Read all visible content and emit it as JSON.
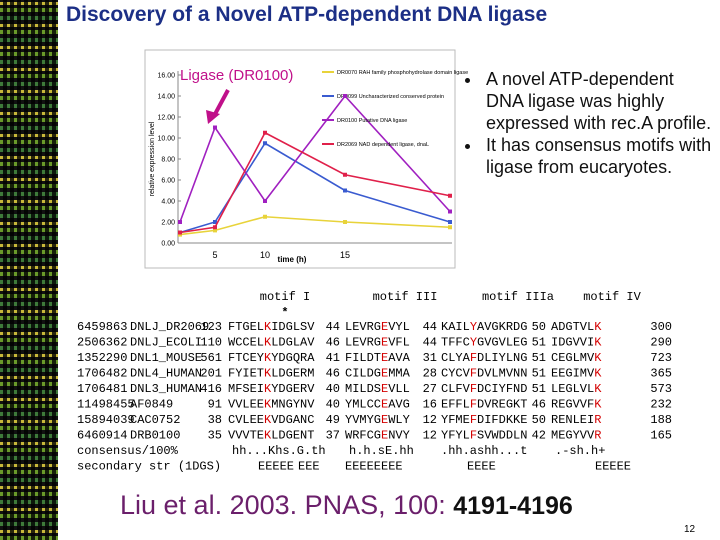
{
  "title": "Discovery of a Novel ATP-dependent DNA ligase",
  "callout": "Ligase (DR0100)",
  "chart_data": {
    "type": "line",
    "y_label": "relative expression level",
    "x_label": "time (h)",
    "categories": [
      null,
      "5",
      "10",
      "15",
      null
    ],
    "ylim": [
      0,
      16
    ],
    "yticks": [
      {
        "value": 0,
        "label": "0.00"
      },
      {
        "value": 2,
        "label": "2.00"
      },
      {
        "value": 4,
        "label": "4.00"
      },
      {
        "value": 6,
        "label": "6.00"
      },
      {
        "value": 8,
        "label": "8.00"
      },
      {
        "value": 10,
        "label": "10.00"
      },
      {
        "value": 12,
        "label": "12.00"
      },
      {
        "value": 14,
        "label": "14.00"
      },
      {
        "value": 16,
        "label": "16.00"
      }
    ],
    "series": [
      {
        "name": "DR0070 RAH family phosphohydrolase domain ligase",
        "color": "#e8d33a",
        "values": [
          0.8,
          1.2,
          2.5,
          2.0,
          1.5
        ]
      },
      {
        "name": "DR0099 Uncharacterized conserved protein",
        "color": "#3a5bd0",
        "values": [
          1.0,
          2.0,
          9.5,
          5.0,
          2.0
        ]
      },
      {
        "name": "DR0100 Putative DNA ligase",
        "color": "#a020c0",
        "values": [
          2.0,
          11.0,
          4.0,
          14.0,
          3.0
        ]
      },
      {
        "name": "DR2069 NAD dependent ligase, dnaL",
        "color": "#e0204a",
        "values": [
          1.0,
          1.5,
          10.5,
          6.5,
          4.5
        ]
      }
    ]
  },
  "bullets": [
    "A novel ATP-dependent DNA ligase was highly expressed with rec.A profile.",
    "It has consensus motifs with ligase from eucaryotes."
  ],
  "alignment": {
    "headers": [
      "motif I",
      "motif III",
      "motif IIIa",
      "motif IV"
    ],
    "marker": "*",
    "highlight_color": "#d40000",
    "rows": [
      [
        6459863,
        "DNLJ_DR2069",
        123,
        "FTGELKIDGLSV",
        44,
        "LEVRGEVYL",
        44,
        "KAILYAVGKRDG",
        50,
        "ADGTVLK",
        300
      ],
      [
        2506362,
        "DNLJ_ECOLI",
        110,
        "WCCELKLDGLAV",
        46,
        "LEVRGEVFL",
        44,
        "TFFCYGVGVLEG",
        51,
        "IDGVVIK",
        290
      ],
      [
        1352290,
        "DNL1_MOUSE",
        561,
        "FTCEYKYDGQRA",
        41,
        "FILDTEAVA",
        31,
        "CLYAFDLIYLNG",
        51,
        "CEGLMVK",
        723
      ],
      [
        1706482,
        "DNL4_HUMAN",
        201,
        "FYIETKLDGERM",
        46,
        "CILDGEMMA",
        28,
        "CYCVFDVLMVNN",
        51,
        "EEGIMVK",
        365
      ],
      [
        1706481,
        "DNL3_HUMAN",
        416,
        "MFSEIKYDGERV",
        40,
        "MILDSEVLL",
        27,
        "CLFVFDCIYFND",
        51,
        "LEGLVLK",
        573
      ],
      [
        11498455,
        "AF0849",
        91,
        "VVLEEKMNGYNV",
        40,
        "YMLCCEAVG",
        16,
        "EFFLFDVREGKT",
        46,
        "REGVVFK",
        232
      ],
      [
        15894039,
        "CAC0752",
        38,
        "CVLEEKVDGANC",
        49,
        "YVMYGEWLY",
        12,
        "YFMEFDIFDKKE",
        50,
        "RENLEIR",
        188
      ],
      [
        6460914,
        "DRB0100",
        35,
        "VVVTEKLDGENT",
        37,
        "WRFCGENVY",
        12,
        "YFYLFSVWDDLN",
        42,
        "MEGYVVR",
        165
      ]
    ],
    "consensus": [
      "consensus/100%",
      "hh...Khs.G.th",
      "h.h.sE.hh",
      ".hh.ashh...t",
      ".-sh.h+"
    ],
    "secondary": [
      "secondary str (1DGS)",
      "EEEEE",
      "EEE",
      "EEEEEEEE",
      "EEEE",
      "EEEEE"
    ]
  },
  "citation": {
    "text": "Liu et al. 2003. PNAS, 100:",
    "pages": "4191-4196"
  },
  "page_number": 12
}
